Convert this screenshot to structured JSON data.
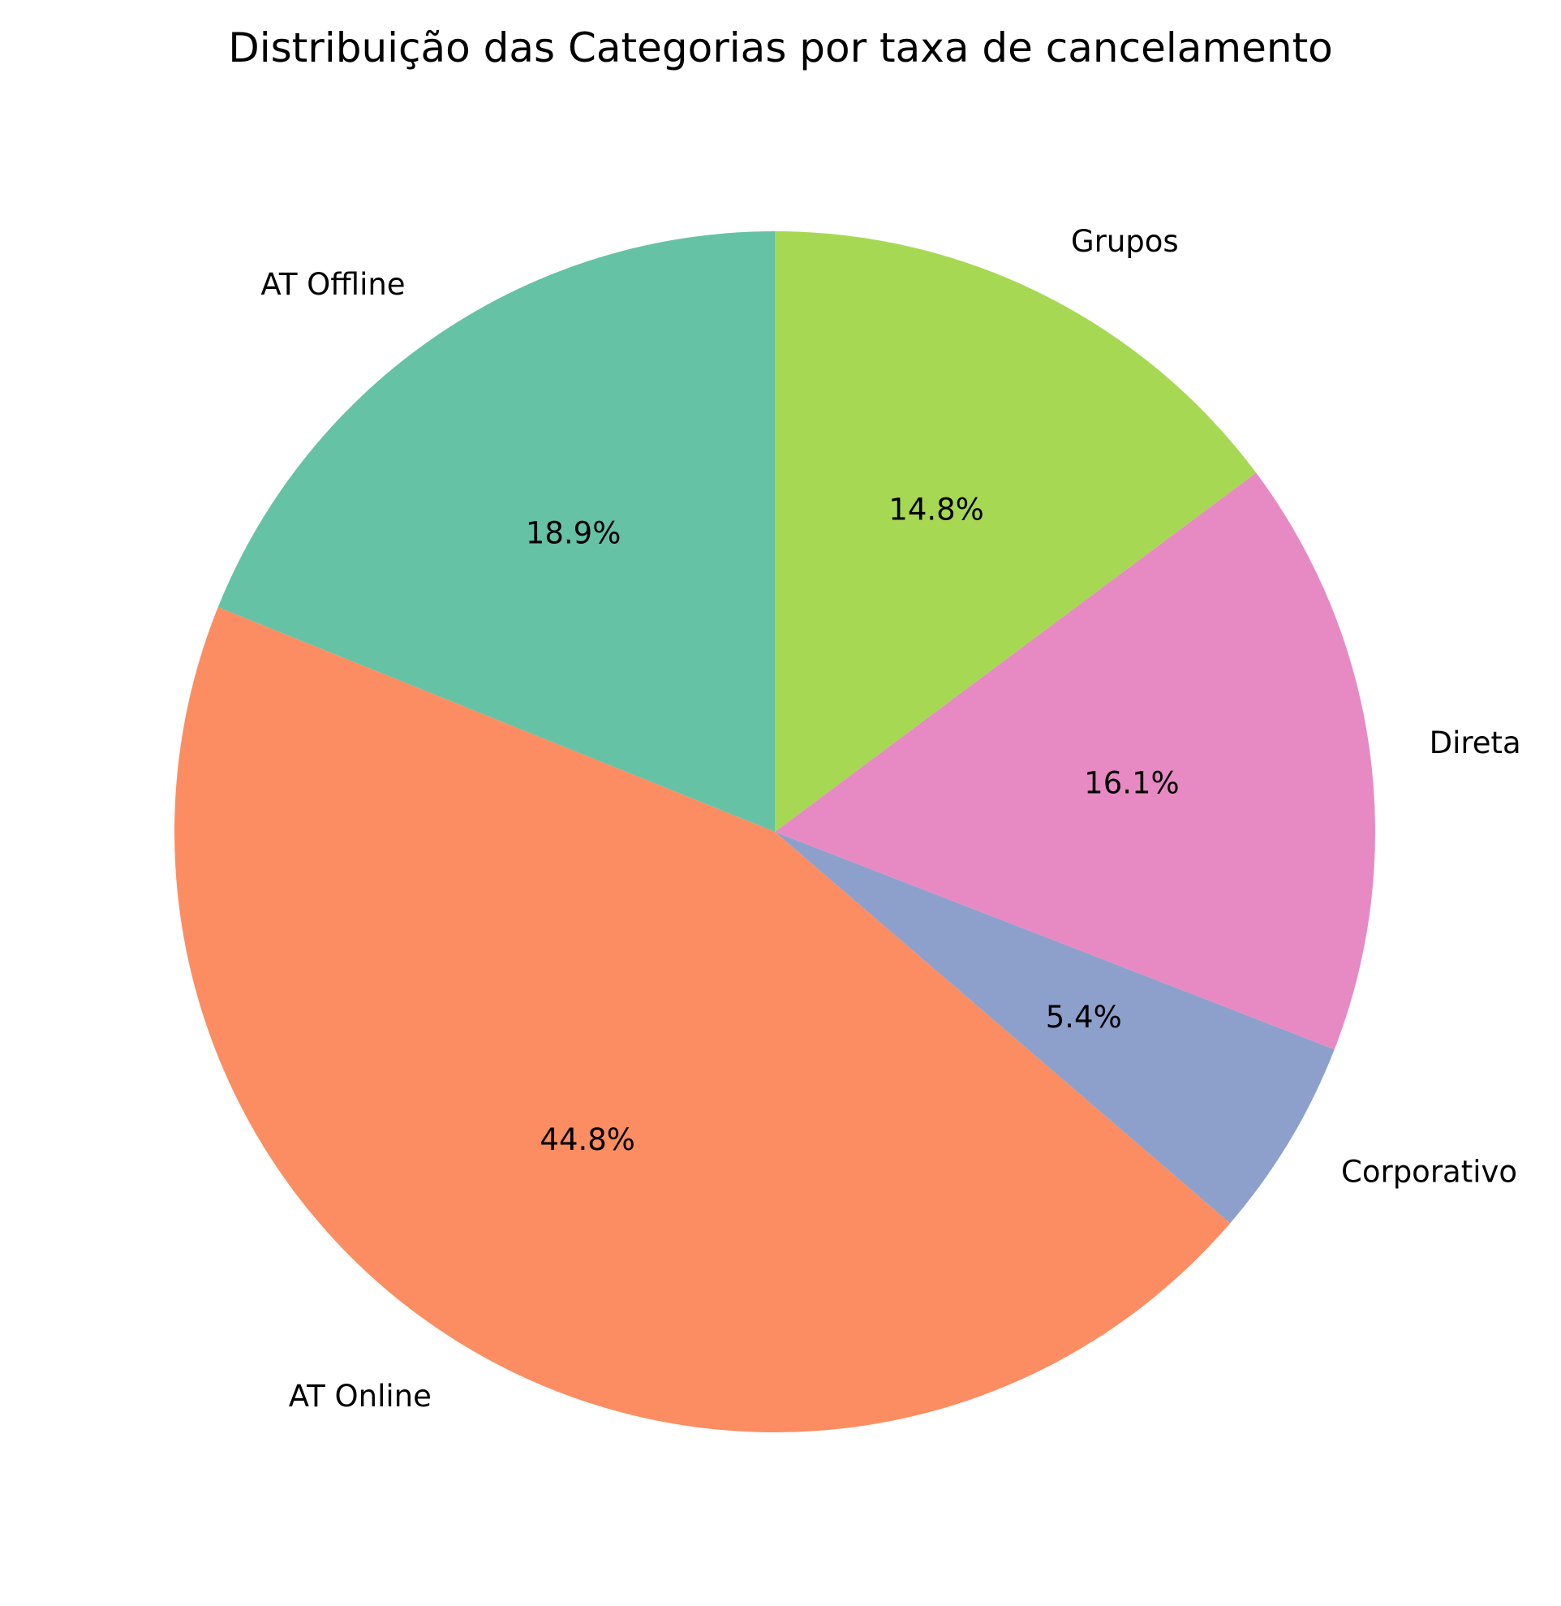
{
  "chart_data": {
    "type": "pie",
    "title": "Distribuição das Categorias por taxa de cancelamento",
    "start_angle_deg": 90,
    "direction": "counterclockwise",
    "slices": [
      {
        "label": "AT Offline",
        "value": 18.9,
        "pct_label": "18.9%",
        "color": "#66c2a5"
      },
      {
        "label": "AT Online",
        "value": 44.8,
        "pct_label": "44.8%",
        "color": "#fc8d62"
      },
      {
        "label": "Corporativo",
        "value": 5.4,
        "pct_label": "5.4%",
        "color": "#8da0cb"
      },
      {
        "label": "Direta",
        "value": 16.1,
        "pct_label": "16.1%",
        "color": "#e78ac3"
      },
      {
        "label": "Grupos",
        "value": 14.8,
        "pct_label": "14.8%",
        "color": "#a6d854"
      }
    ]
  }
}
